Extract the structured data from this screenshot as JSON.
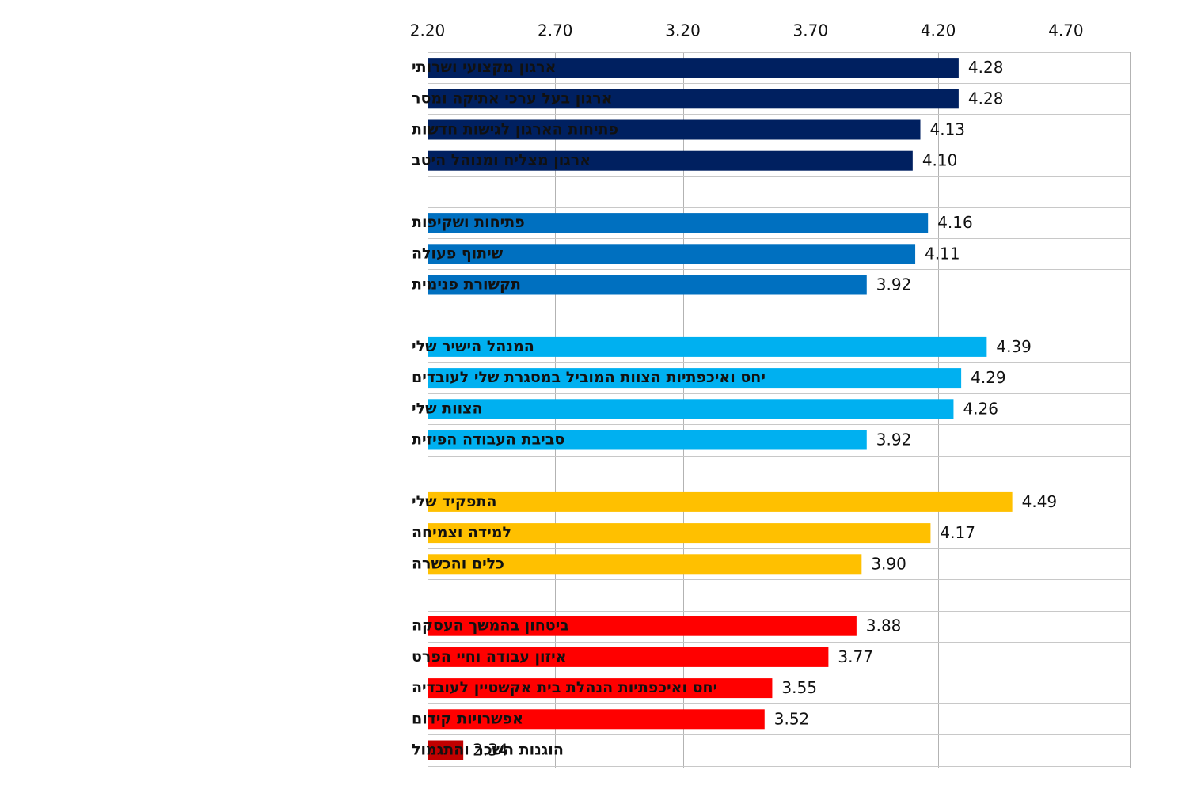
{
  "chart_data": {
    "type": "bar",
    "orientation": "horizontal",
    "xlim": [
      2.2,
      4.95
    ],
    "ticks": [
      "2.20",
      "2.70",
      "3.20",
      "3.70",
      "4.20",
      "4.70"
    ],
    "tick_values": [
      2.2,
      2.7,
      3.2,
      3.7,
      4.2,
      4.7
    ],
    "grid": true,
    "legend": "none",
    "groups": [
      {
        "color": "#002060",
        "items": [
          {
            "label": "ארגון מקצועי ושרותי",
            "value": 4.28,
            "value_label": "4.28"
          },
          {
            "label": "ארגון בעל ערכי אתיקה ומסר",
            "value": 4.28,
            "value_label": "4.28"
          },
          {
            "label": "פתיחות הארגון לגישות חדשות",
            "value": 4.13,
            "value_label": "4.13"
          },
          {
            "label": "ארגון מצליח ומנוהל היטב",
            "value": 4.1,
            "value_label": "4.10"
          }
        ]
      },
      {
        "color": "#0070c0",
        "items": [
          {
            "label": "פתיחות ושקיפות",
            "value": 4.16,
            "value_label": "4.16"
          },
          {
            "label": "שיתוף פעולה",
            "value": 4.11,
            "value_label": "4.11"
          },
          {
            "label": "תקשורת פנימית",
            "value": 3.92,
            "value_label": "3.92"
          }
        ]
      },
      {
        "color": "#00b0f0",
        "items": [
          {
            "label": "המנהל הישיר שלי",
            "value": 4.39,
            "value_label": "4.39"
          },
          {
            "label": "יחס ואיכפתיות הצוות המוביל במסגרת שלי לעובדים",
            "value": 4.29,
            "value_label": "4.29"
          },
          {
            "label": "הצוות שלי",
            "value": 4.26,
            "value_label": "4.26"
          },
          {
            "label": "סביבת העבודה הפיזית",
            "value": 3.92,
            "value_label": "3.92"
          }
        ]
      },
      {
        "color": "#ffc000",
        "items": [
          {
            "label": "התפקיד שלי",
            "value": 4.49,
            "value_label": "4.49"
          },
          {
            "label": "למידה וצמיחה",
            "value": 4.17,
            "value_label": "4.17"
          },
          {
            "label": "כלים והכשרה",
            "value": 3.9,
            "value_label": "3.90"
          }
        ]
      },
      {
        "color": "#ff0000",
        "items": [
          {
            "label": "ביטחון בהמשך העסקה",
            "value": 3.88,
            "value_label": "3.88"
          },
          {
            "label": "איזון עבודה וחיי הפרט",
            "value": 3.77,
            "value_label": "3.77"
          },
          {
            "label": "יחס ואיכפתיות הנהלת בית אקשטיין לעובדיה",
            "value": 3.55,
            "value_label": "3.55"
          },
          {
            "label": "אפשרויות קידום",
            "value": 3.52,
            "value_label": "3.52"
          },
          {
            "label": "הוגנות השכר והתגמול",
            "value": 2.34,
            "value_label": "2.34",
            "color": "#c00000"
          }
        ]
      }
    ]
  }
}
